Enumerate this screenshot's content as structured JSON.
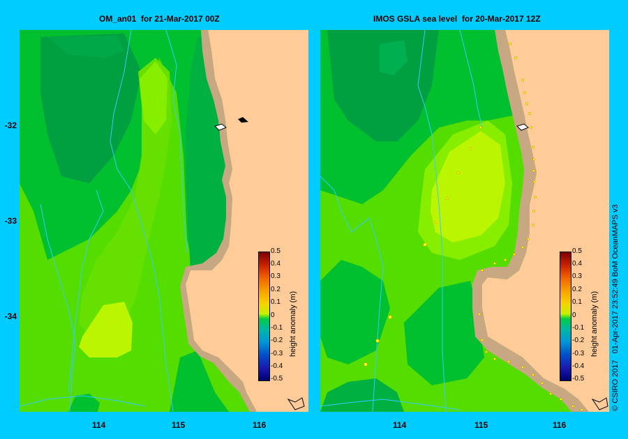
{
  "left_panel": {
    "title": "OM_an01  for 21-Mar-2017 00Z",
    "x_ticks": [
      "114",
      "115",
      "116"
    ],
    "y_ticks": [
      "-32",
      "-33",
      "-34"
    ],
    "colorbar": {
      "label": "height anomaly (m)",
      "ticks": [
        "0.5",
        "0.4",
        "0.3",
        "0.2",
        "0.1",
        "0",
        "-0.1",
        "-0.2",
        "-0.3",
        "-0.4",
        "-0.5"
      ]
    }
  },
  "right_panel": {
    "title": "IMOS GSLA sea level  for 20-Mar-2017 12Z",
    "x_ticks": [
      "114",
      "115",
      "116"
    ],
    "colorbar": {
      "label": "height anomaly (m)",
      "ticks": [
        "0.5",
        "0.4",
        "0.3",
        "0.2",
        "0.1",
        "0",
        "-0.1",
        "-0.2",
        "-0.3",
        "-0.4",
        "-0.5"
      ]
    }
  },
  "credit": "© CSIRO 2017   01-Apr-2017 23:52:49 BoM OceanMAPS v3",
  "colors": {
    "background": "#00CCFF",
    "land": "#FFCC99",
    "coast": "#C8A882",
    "green_dark": "#00A040",
    "green_mid": "#00C030",
    "green_light": "#55DD00",
    "green_lime": "#99EE00",
    "yellow_green": "#CCFF00",
    "bathymetry": "#33CCFF"
  }
}
